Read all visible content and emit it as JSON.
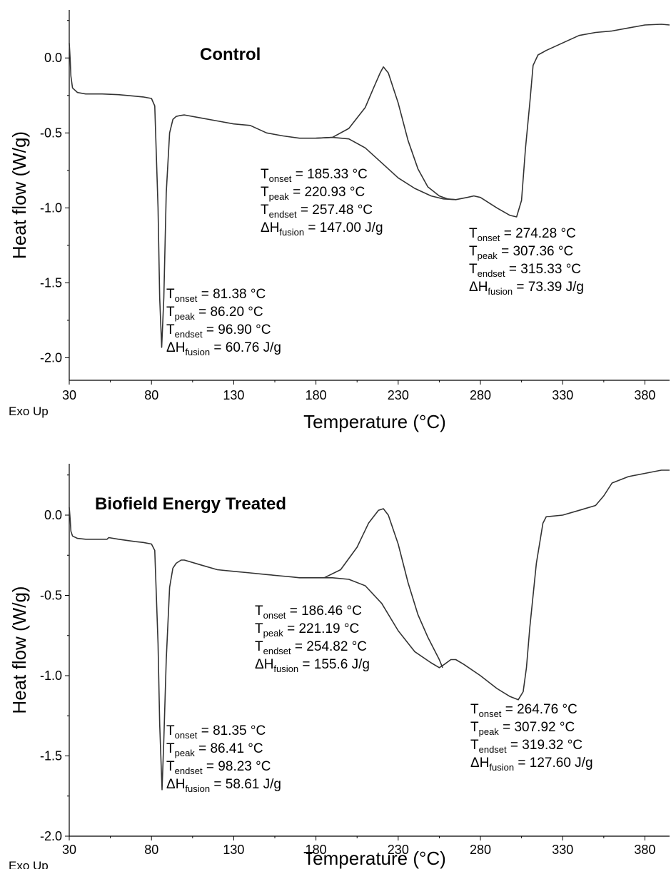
{
  "chart_data": [
    {
      "type": "line",
      "title": "Control",
      "xlabel": "Temperature (°C)",
      "ylabel": "Heat flow (W/g)",
      "corner_label": "Exo Up",
      "xlim": [
        30,
        395
      ],
      "ylim": [
        -2.15,
        0.32
      ],
      "xticks": [
        "30",
        "80",
        "130",
        "180",
        "230",
        "280",
        "330",
        "380"
      ],
      "yticks": [
        "0.0",
        "-0.5",
        "-1.0",
        "-1.5",
        "-2.0"
      ],
      "xtick_values": [
        30,
        80,
        130,
        180,
        230,
        280,
        330,
        380
      ],
      "ytick_values": [
        0.0,
        -0.5,
        -1.0,
        -1.5,
        -2.0
      ],
      "series": [
        {
          "x": [
            30,
            30.5,
            31,
            32,
            35,
            40,
            50,
            60,
            70,
            75,
            80,
            82,
            84,
            85,
            86.2,
            87.5,
            89,
            91,
            93,
            95,
            97,
            100,
            110,
            120,
            130,
            140,
            150,
            160,
            170,
            180,
            190,
            200,
            210,
            220,
            230,
            240,
            250,
            257.5,
            265,
            272,
            276,
            280,
            290,
            298,
            302,
            305,
            307.4,
            310,
            312,
            315,
            320,
            330,
            340,
            350,
            360,
            370,
            380,
            390,
            395
          ],
          "y": [
            0.1,
            0.0,
            -0.12,
            -0.2,
            -0.23,
            -0.24,
            -0.24,
            -0.245,
            -0.255,
            -0.26,
            -0.27,
            -0.32,
            -1.0,
            -1.6,
            -1.93,
            -1.6,
            -0.9,
            -0.5,
            -0.41,
            -0.39,
            -0.385,
            -0.38,
            -0.4,
            -0.42,
            -0.44,
            -0.45,
            -0.5,
            -0.52,
            -0.535,
            -0.535,
            -0.53,
            -0.54,
            -0.6,
            -0.7,
            -0.8,
            -0.87,
            -0.92,
            -0.94,
            -0.945,
            -0.93,
            -0.92,
            -0.93,
            -1.0,
            -1.05,
            -1.06,
            -0.95,
            -0.6,
            -0.3,
            -0.05,
            0.02,
            0.05,
            0.1,
            0.15,
            0.17,
            0.18,
            0.2,
            0.22,
            0.225,
            0.22
          ]
        },
        {
          "x": [
            180,
            190,
            200,
            210,
            215,
            219,
            221,
            224,
            230,
            236,
            242,
            248,
            255,
            260,
            265
          ],
          "y": [
            -0.535,
            -0.53,
            -0.47,
            -0.33,
            -0.2,
            -0.1,
            -0.06,
            -0.1,
            -0.3,
            -0.55,
            -0.74,
            -0.86,
            -0.92,
            -0.94,
            -0.945
          ]
        }
      ],
      "annotations": [
        {
          "lines": [
            {
              "sub": "onset",
              "value": " = 81.38 °C"
            },
            {
              "sub": "peak",
              "value": " = 86.20 °C"
            },
            {
              "sub": "endset",
              "value": " = 96.90 °C"
            },
            {
              "sub": "fusion",
              "value": " = 60.76 J/g"
            }
          ]
        },
        {
          "lines": [
            {
              "sub": "onset",
              "value": " = 185.33 °C"
            },
            {
              "sub": "peak",
              "value": " = 220.93 °C"
            },
            {
              "sub": "endset",
              "value": " = 257.48 °C"
            },
            {
              "sub": "fusion",
              "value": " = 147.00 J/g"
            }
          ]
        },
        {
          "lines": [
            {
              "sub": "onset",
              "value": " = 274.28 °C"
            },
            {
              "sub": "peak",
              "value": " = 307.36 °C"
            },
            {
              "sub": "endset",
              "value": " = 315.33 °C"
            },
            {
              "sub": "fusion",
              "value": " = 73.39 J/g"
            }
          ]
        }
      ]
    },
    {
      "type": "line",
      "title": "Biofield Energy Treated",
      "xlabel": "Temperature (°C)",
      "ylabel": "Heat flow (W/g)",
      "corner_label": "Exo Up",
      "xlim": [
        30,
        395
      ],
      "ylim": [
        -2.0,
        0.32
      ],
      "xticks": [
        "30",
        "80",
        "130",
        "180",
        "230",
        "280",
        "330",
        "380"
      ],
      "yticks": [
        "0.0",
        "-0.5",
        "-1.0",
        "-1.5",
        "-2.0"
      ],
      "xtick_values": [
        30,
        80,
        130,
        180,
        230,
        280,
        330,
        380
      ],
      "ytick_values": [
        0.0,
        -0.5,
        -1.0,
        -1.5,
        -2.0
      ],
      "series": [
        {
          "x": [
            30,
            30.5,
            31,
            32,
            35,
            40,
            50,
            53,
            54,
            60,
            70,
            75,
            80,
            82,
            84,
            85,
            86.4,
            87.5,
            89,
            91,
            93,
            95,
            98,
            100,
            110,
            120,
            130,
            140,
            150,
            160,
            165,
            170,
            180,
            190,
            200,
            210,
            220,
            230,
            240,
            250,
            255,
            258,
            262,
            265,
            270,
            280,
            290,
            298,
            303,
            306,
            308,
            310,
            314,
            318,
            320,
            330,
            340,
            350,
            355,
            360,
            370,
            380,
            390,
            395
          ],
          "y": [
            0.05,
            -0.02,
            -0.1,
            -0.13,
            -0.145,
            -0.15,
            -0.15,
            -0.15,
            -0.14,
            -0.15,
            -0.165,
            -0.17,
            -0.18,
            -0.22,
            -0.8,
            -1.3,
            -1.71,
            -1.4,
            -0.9,
            -0.45,
            -0.33,
            -0.3,
            -0.28,
            -0.28,
            -0.31,
            -0.34,
            -0.35,
            -0.36,
            -0.37,
            -0.38,
            -0.385,
            -0.39,
            -0.39,
            -0.39,
            -0.4,
            -0.44,
            -0.55,
            -0.72,
            -0.85,
            -0.92,
            -0.95,
            -0.93,
            -0.9,
            -0.9,
            -0.93,
            -1.0,
            -1.08,
            -1.13,
            -1.15,
            -1.1,
            -0.95,
            -0.7,
            -0.3,
            -0.05,
            -0.01,
            0.0,
            0.03,
            0.06,
            0.12,
            0.2,
            0.24,
            0.26,
            0.28,
            0.28
          ]
        },
        {
          "x": [
            185,
            195,
            205,
            212,
            218,
            221,
            224,
            230,
            236,
            242,
            248,
            252,
            255,
            257
          ],
          "y": [
            -0.39,
            -0.34,
            -0.2,
            -0.05,
            0.03,
            0.04,
            0.0,
            -0.18,
            -0.42,
            -0.62,
            -0.76,
            -0.84,
            -0.9,
            -0.95
          ]
        }
      ],
      "annotations": [
        {
          "lines": [
            {
              "sub": "onset",
              "value": " = 81.35 °C"
            },
            {
              "sub": "peak",
              "value": " = 86.41 °C"
            },
            {
              "sub": "endset",
              "value": " = 98.23 °C"
            },
            {
              "sub": "fusion",
              "value": " = 58.61 J/g"
            }
          ]
        },
        {
          "lines": [
            {
              "sub": "onset",
              "value": " = 186.46 °C"
            },
            {
              "sub": "peak",
              "value": " = 221.19 °C"
            },
            {
              "sub": "endset",
              "value": " = 254.82 °C"
            },
            {
              "sub": "fusion",
              "value": " = 155.6 J/g"
            }
          ]
        },
        {
          "lines": [
            {
              "sub": "onset",
              "value": " = 264.76 °C"
            },
            {
              "sub": "peak",
              "value": " = 307.92 °C"
            },
            {
              "sub": "endset",
              "value": " = 319.32 °C"
            },
            {
              "sub": "fusion",
              "value": " = 127.60 J/g"
            }
          ]
        }
      ]
    }
  ]
}
